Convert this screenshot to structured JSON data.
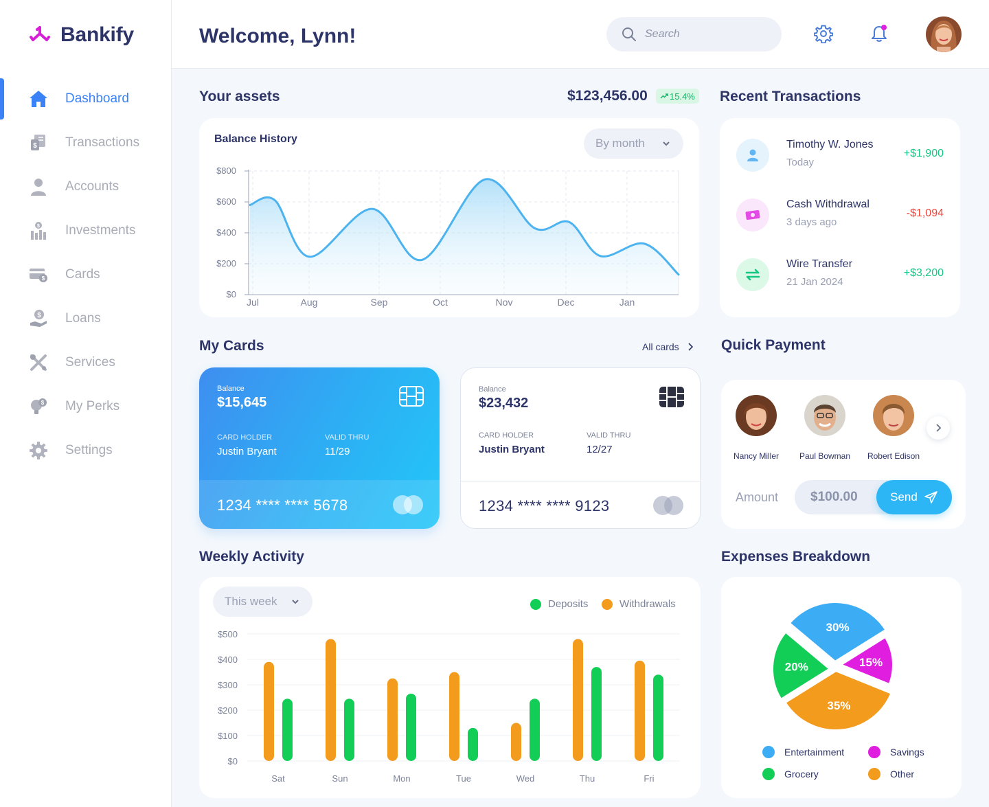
{
  "brand": {
    "name": "Bankify"
  },
  "sidebar": {
    "items": [
      {
        "label": "Dashboard",
        "icon": "home-icon"
      },
      {
        "label": "Transactions",
        "icon": "transactions-icon"
      },
      {
        "label": "Accounts",
        "icon": "user-icon"
      },
      {
        "label": "Investments",
        "icon": "investments-icon"
      },
      {
        "label": "Cards",
        "icon": "cards-icon"
      },
      {
        "label": "Loans",
        "icon": "loans-icon"
      },
      {
        "label": "Services",
        "icon": "services-icon"
      },
      {
        "label": "My Perks",
        "icon": "perks-icon"
      },
      {
        "label": "Settings",
        "icon": "settings-icon"
      }
    ],
    "active_index": 0
  },
  "header": {
    "welcome": "Welcome, Lynn!",
    "search_placeholder": "Search"
  },
  "assets": {
    "title": "Your assets",
    "total": "$123,456.00",
    "change": "15.4%",
    "chart_title": "Balance History",
    "period": "By month"
  },
  "chart_data": [
    {
      "type": "area",
      "title": "Balance History",
      "x": [
        "Jul",
        "Aug",
        "Sep",
        "Oct",
        "Nov",
        "Dec",
        "Jan"
      ],
      "y_ticks": [
        "$0",
        "$200",
        "$400",
        "$600",
        "$800"
      ],
      "ylim": [
        0,
        800
      ],
      "points": [
        {
          "x": 0.0,
          "y": 580
        },
        {
          "x": 0.4,
          "y": 610
        },
        {
          "x": 0.95,
          "y": 245
        },
        {
          "x": 1.95,
          "y": 555
        },
        {
          "x": 2.75,
          "y": 225
        },
        {
          "x": 3.75,
          "y": 745
        },
        {
          "x": 4.55,
          "y": 430
        },
        {
          "x": 5.1,
          "y": 470
        },
        {
          "x": 5.6,
          "y": 250
        },
        {
          "x": 6.3,
          "y": 330
        },
        {
          "x": 6.85,
          "y": 130
        }
      ],
      "color": "#4db3ee",
      "grid": true
    },
    {
      "type": "bar",
      "title": "Weekly Activity",
      "categories": [
        "Sat",
        "Sun",
        "Mon",
        "Tue",
        "Wed",
        "Thu",
        "Fri"
      ],
      "y_ticks": [
        "$0",
        "$100",
        "$200",
        "$300",
        "$400",
        "$500"
      ],
      "ylim": [
        0,
        500
      ],
      "series": [
        {
          "name": "Withdrawals",
          "color": "#f29b1d",
          "values": [
            390,
            480,
            325,
            350,
            150,
            480,
            395
          ]
        },
        {
          "name": "Deposits",
          "color": "#12ce57",
          "values": [
            245,
            245,
            265,
            130,
            245,
            370,
            340
          ]
        }
      ],
      "legend": "top-right"
    },
    {
      "type": "pie",
      "title": "Expenses Breakdown",
      "slices": [
        {
          "name": "Entertainment",
          "value": 30,
          "label": "30%",
          "color": "#3cadf4"
        },
        {
          "name": "Savings",
          "value": 15,
          "label": "15%",
          "color": "#e01ee0"
        },
        {
          "name": "Other",
          "value": 35,
          "label": "35%",
          "color": "#f29b1d"
        },
        {
          "name": "Grocery",
          "value": 20,
          "label": "20%",
          "color": "#12ce57"
        }
      ]
    }
  ],
  "transactions": {
    "title": "Recent Transactions",
    "items": [
      {
        "name": "Timothy W. Jones",
        "date": "Today",
        "amount": "+$1,900",
        "type": "credit",
        "icon": "user-icon",
        "bg": "#e5f3fd"
      },
      {
        "name": "Cash Withdrawal",
        "date": "3 days ago",
        "amount": "-$1,094",
        "type": "debit",
        "icon": "cash-icon",
        "bg": "#fbe7fb"
      },
      {
        "name": "Wire Transfer",
        "date": "21 Jan 2024",
        "amount": "+$3,200",
        "type": "credit",
        "icon": "transfer-icon",
        "bg": "#dcf8e6"
      }
    ]
  },
  "my_cards": {
    "title": "My Cards",
    "all_cards": "All cards",
    "cards": [
      {
        "balance_label": "Balance",
        "balance": "$15,645",
        "holder_label": "CARD HOLDER",
        "holder": "Justin Bryant",
        "valid_label": "VALID THRU",
        "valid": "11/29",
        "number": "1234 **** **** 5678",
        "style": "blue"
      },
      {
        "balance_label": "Balance",
        "balance": "$23,432",
        "holder_label": "CARD HOLDER",
        "holder": "Justin Bryant",
        "valid_label": "VALID THRU",
        "valid": "12/27",
        "number": "1234 **** **** 9123",
        "style": "white"
      }
    ]
  },
  "quick_payment": {
    "title": "Quick Payment",
    "contacts": [
      {
        "name": "Nancy Miller"
      },
      {
        "name": "Paul Bowman"
      },
      {
        "name": "Robert Edison"
      }
    ],
    "amount_label": "Amount",
    "amount": "$100.00",
    "send_label": "Send"
  },
  "weekly_activity": {
    "title": "Weekly Activity",
    "period": "This week",
    "legend_deposits": "Deposits",
    "legend_withdrawals": "Withdrawals"
  },
  "expenses": {
    "title": "Expenses Breakdown",
    "legend": [
      "Entertainment",
      "Savings",
      "Grocery",
      "Other"
    ]
  },
  "colors": {
    "accent": "#3b82f6",
    "positive": "#16c784",
    "negative": "#f0443a"
  }
}
